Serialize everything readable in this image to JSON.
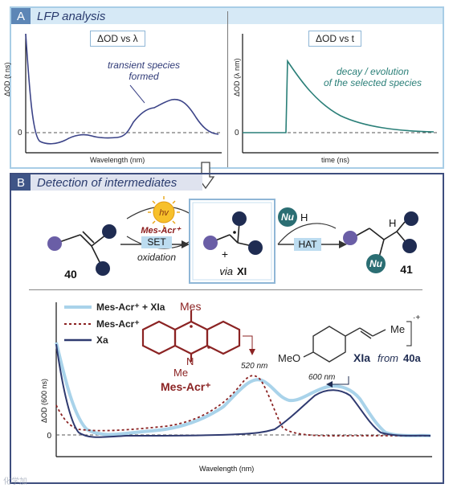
{
  "panel_a": {
    "letter": "A",
    "title": "LFP analysis",
    "left_chart": {
      "label": "ΔOD vs λ",
      "ylabel": "ΔOD (t ns)",
      "xlabel": "Wavelength (nm)",
      "zero": "0",
      "note_line1": "transient species",
      "note_line2": "formed"
    },
    "right_chart": {
      "label": "ΔOD vs t",
      "ylabel": "ΔOD (λ nm)",
      "xlabel": "time (ns)",
      "zero": "0",
      "note_line1": "decay / evolution",
      "note_line2": "of the selected species"
    }
  },
  "panel_b": {
    "letter": "B",
    "title": "Detection of intermediates",
    "scheme": {
      "hv": "hv",
      "catalyst": "Mes-Acr⁺",
      "set": "SET",
      "oxidation": "oxidation",
      "plus": "+",
      "via_word": "via",
      "via_code": "XI",
      "nu": "Nu",
      "h": "H",
      "hat": "HAT",
      "compound_start": "40",
      "compound_end": "41"
    },
    "plot": {
      "legend": [
        "Mes-Acr⁺ + XIa",
        "Mes-Acr⁺",
        "Xa"
      ],
      "ylabel": "ΔOD (600 ns)",
      "xlabel": "Wavelength (nm)",
      "zero": "0",
      "mes_label": "Mes",
      "n_label": "N",
      "me_label": "Me",
      "acr_name": "Mes-Acr⁺",
      "peak1": "520 nm",
      "peak2": "600 nm",
      "meo": "MeO",
      "me_tail": "Me",
      "cation_mark": "·+",
      "xia_code": "XIa",
      "xia_from": "from",
      "xia_source": "40a"
    }
  },
  "colors": {
    "panel_a_border": "#a8cde6",
    "panel_b_border": "#3e4e7e",
    "spectrum_curve": "#3c4488",
    "decay_curve": "#2a7f78",
    "combined_light_blue": "#a9d3ea",
    "acr_dotted_red": "#8b2323",
    "xa_dark_navy": "#2f3a70"
  },
  "watermark": "化学加"
}
